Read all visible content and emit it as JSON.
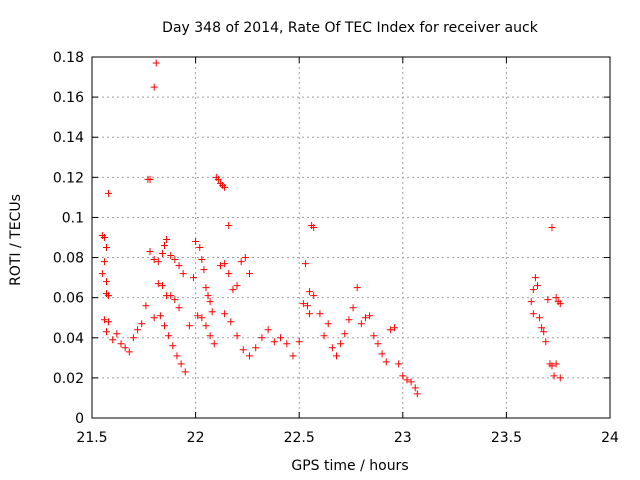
{
  "chart_data": {
    "type": "scatter",
    "title": "Day 348 of 2014, Rate Of TEC Index for receiver auck",
    "xlabel": "GPS time / hours",
    "ylabel": "ROTI / TECUs",
    "xlim": [
      21.5,
      24
    ],
    "ylim": [
      0,
      0.18
    ],
    "grid": true,
    "legend": "none",
    "marker": "plus",
    "marker_color": "#ff0000",
    "x_ticks": [
      21.5,
      22,
      22.5,
      23,
      23.5,
      24
    ],
    "x_tick_labels": [
      "21.5",
      "22",
      "22.5",
      "23",
      "23.5",
      "24"
    ],
    "y_ticks": [
      0,
      0.02,
      0.04,
      0.06,
      0.08,
      0.1,
      0.12,
      0.14,
      0.16,
      0.18
    ],
    "y_tick_labels": [
      "0",
      "0.02",
      "0.04",
      "0.06",
      "0.08",
      "0.1",
      "0.12",
      "0.14",
      "0.16",
      "0.18"
    ],
    "series": [
      {
        "name": "ROTI",
        "points": [
          [
            21.55,
            0.091
          ],
          [
            21.56,
            0.09
          ],
          [
            21.57,
            0.085
          ],
          [
            21.56,
            0.078
          ],
          [
            21.55,
            0.072
          ],
          [
            21.57,
            0.068
          ],
          [
            21.58,
            0.112
          ],
          [
            21.57,
            0.062
          ],
          [
            21.58,
            0.061
          ],
          [
            21.56,
            0.049
          ],
          [
            21.58,
            0.048
          ],
          [
            21.57,
            0.043
          ],
          [
            21.6,
            0.039
          ],
          [
            21.62,
            0.042
          ],
          [
            21.64,
            0.037
          ],
          [
            21.66,
            0.035
          ],
          [
            21.68,
            0.033
          ],
          [
            21.7,
            0.04
          ],
          [
            21.72,
            0.044
          ],
          [
            21.74,
            0.047
          ],
          [
            21.76,
            0.056
          ],
          [
            21.78,
            0.083
          ],
          [
            21.77,
            0.119
          ],
          [
            21.78,
            0.119
          ],
          [
            21.8,
            0.165
          ],
          [
            21.81,
            0.177
          ],
          [
            21.8,
            0.079
          ],
          [
            21.82,
            0.078
          ],
          [
            21.84,
            0.082
          ],
          [
            21.85,
            0.086
          ],
          [
            21.86,
            0.089
          ],
          [
            21.88,
            0.081
          ],
          [
            21.9,
            0.079
          ],
          [
            21.92,
            0.076
          ],
          [
            21.94,
            0.072
          ],
          [
            21.82,
            0.067
          ],
          [
            21.84,
            0.066
          ],
          [
            21.86,
            0.061
          ],
          [
            21.88,
            0.061
          ],
          [
            21.9,
            0.059
          ],
          [
            21.92,
            0.055
          ],
          [
            21.8,
            0.05
          ],
          [
            21.83,
            0.051
          ],
          [
            21.85,
            0.046
          ],
          [
            21.87,
            0.041
          ],
          [
            21.89,
            0.036
          ],
          [
            21.91,
            0.031
          ],
          [
            21.93,
            0.027
          ],
          [
            21.95,
            0.023
          ],
          [
            21.97,
            0.046
          ],
          [
            21.99,
            0.07
          ],
          [
            22.0,
            0.088
          ],
          [
            22.02,
            0.085
          ],
          [
            22.03,
            0.079
          ],
          [
            22.04,
            0.074
          ],
          [
            22.05,
            0.065
          ],
          [
            22.06,
            0.061
          ],
          [
            22.07,
            0.058
          ],
          [
            22.08,
            0.053
          ],
          [
            22.01,
            0.051
          ],
          [
            22.03,
            0.05
          ],
          [
            22.05,
            0.046
          ],
          [
            22.07,
            0.041
          ],
          [
            22.09,
            0.037
          ],
          [
            22.1,
            0.12
          ],
          [
            22.11,
            0.119
          ],
          [
            22.12,
            0.117
          ],
          [
            22.13,
            0.116
          ],
          [
            22.14,
            0.115
          ],
          [
            22.16,
            0.096
          ],
          [
            22.12,
            0.076
          ],
          [
            22.14,
            0.077
          ],
          [
            22.16,
            0.072
          ],
          [
            22.18,
            0.064
          ],
          [
            22.2,
            0.066
          ],
          [
            22.22,
            0.078
          ],
          [
            22.24,
            0.08
          ],
          [
            22.26,
            0.072
          ],
          [
            22.14,
            0.052
          ],
          [
            22.17,
            0.048
          ],
          [
            22.2,
            0.041
          ],
          [
            22.23,
            0.034
          ],
          [
            22.26,
            0.031
          ],
          [
            22.29,
            0.035
          ],
          [
            22.32,
            0.04
          ],
          [
            22.35,
            0.044
          ],
          [
            22.38,
            0.038
          ],
          [
            22.41,
            0.04
          ],
          [
            22.44,
            0.037
          ],
          [
            22.47,
            0.031
          ],
          [
            22.5,
            0.038
          ],
          [
            22.52,
            0.057
          ],
          [
            22.54,
            0.056
          ],
          [
            22.55,
            0.052
          ],
          [
            22.56,
            0.096
          ],
          [
            22.57,
            0.095
          ],
          [
            22.53,
            0.077
          ],
          [
            22.55,
            0.063
          ],
          [
            22.57,
            0.061
          ],
          [
            22.6,
            0.052
          ],
          [
            22.62,
            0.041
          ],
          [
            22.64,
            0.047
          ],
          [
            22.66,
            0.035
          ],
          [
            22.68,
            0.031
          ],
          [
            22.7,
            0.037
          ],
          [
            22.72,
            0.042
          ],
          [
            22.74,
            0.049
          ],
          [
            22.76,
            0.055
          ],
          [
            22.78,
            0.065
          ],
          [
            22.8,
            0.047
          ],
          [
            22.82,
            0.05
          ],
          [
            22.84,
            0.051
          ],
          [
            22.86,
            0.041
          ],
          [
            22.88,
            0.037
          ],
          [
            22.9,
            0.032
          ],
          [
            22.92,
            0.028
          ],
          [
            22.94,
            0.044
          ],
          [
            22.96,
            0.045
          ],
          [
            22.98,
            0.027
          ],
          [
            23.0,
            0.021
          ],
          [
            23.02,
            0.019
          ],
          [
            23.04,
            0.018
          ],
          [
            23.06,
            0.015
          ],
          [
            23.07,
            0.012
          ],
          [
            23.62,
            0.058
          ],
          [
            23.63,
            0.064
          ],
          [
            23.64,
            0.07
          ],
          [
            23.65,
            0.066
          ],
          [
            23.63,
            0.052
          ],
          [
            23.66,
            0.05
          ],
          [
            23.67,
            0.045
          ],
          [
            23.68,
            0.043
          ],
          [
            23.69,
            0.038
          ],
          [
            23.72,
            0.095
          ],
          [
            23.7,
            0.059
          ],
          [
            23.74,
            0.06
          ],
          [
            23.75,
            0.058
          ],
          [
            23.76,
            0.057
          ],
          [
            23.71,
            0.027
          ],
          [
            23.72,
            0.026
          ],
          [
            23.74,
            0.027
          ],
          [
            23.76,
            0.02
          ],
          [
            23.73,
            0.021
          ]
        ]
      }
    ]
  }
}
